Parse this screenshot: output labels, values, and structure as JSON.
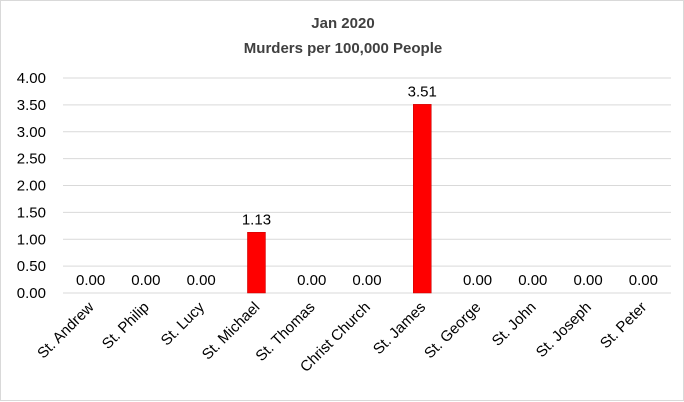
{
  "chart_data": {
    "type": "bar",
    "title": "Jan 2020",
    "subtitle": "Murders per 100,000 People",
    "xlabel": "",
    "ylabel": "",
    "ylim": [
      0,
      4
    ],
    "yticks": [
      "0.00",
      "0.50",
      "1.00",
      "1.50",
      "2.00",
      "2.50",
      "3.00",
      "3.50",
      "4.00"
    ],
    "categories": [
      "St. Andrew",
      "St. Philip",
      "St. Lucy",
      "St. Michael",
      "St. Thomas",
      "Christ Church",
      "St. James",
      "St. George",
      "St. John",
      "St. Joseph",
      "St. Peter"
    ],
    "values": [
      0,
      0,
      0,
      1.13,
      0,
      0,
      3.51,
      0,
      0,
      0,
      0
    ],
    "data_labels": [
      "0.00",
      "0.00",
      "0.00",
      "1.13",
      "0.00",
      "0.00",
      "3.51",
      "0.00",
      "0.00",
      "0.00",
      "0.00"
    ],
    "grid": true,
    "legend": "none",
    "bar_color": "#ff0000",
    "bar_edge_color": "#c00000",
    "grid_color": "#d9d9d9"
  }
}
